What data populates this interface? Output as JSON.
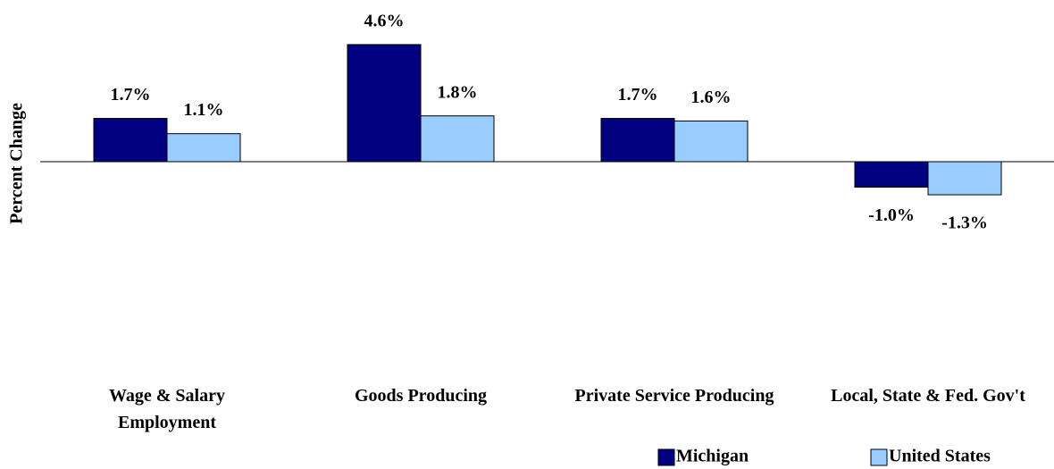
{
  "chart_data": {
    "type": "bar",
    "y_label": "Percent Change",
    "categories": [
      "Wage & Salary Employment",
      "Goods Producing",
      "Private Service Producing",
      "Local, State & Fed. Gov't"
    ],
    "series": [
      {
        "name": "Michigan",
        "color": "#000080",
        "values": [
          1.7,
          4.6,
          1.7,
          -1.0
        ],
        "value_labels": [
          "1.7%",
          "4.6%",
          "1.7%",
          "-1.0%"
        ]
      },
      {
        "name": "United States",
        "color": "#99ccff",
        "values": [
          1.1,
          1.8,
          1.6,
          -1.3
        ],
        "value_labels": [
          "1.1%",
          "1.8%",
          "1.6%",
          "-1.3%"
        ]
      }
    ],
    "ylim": [
      -4,
      6
    ],
    "legend": "lower right"
  }
}
